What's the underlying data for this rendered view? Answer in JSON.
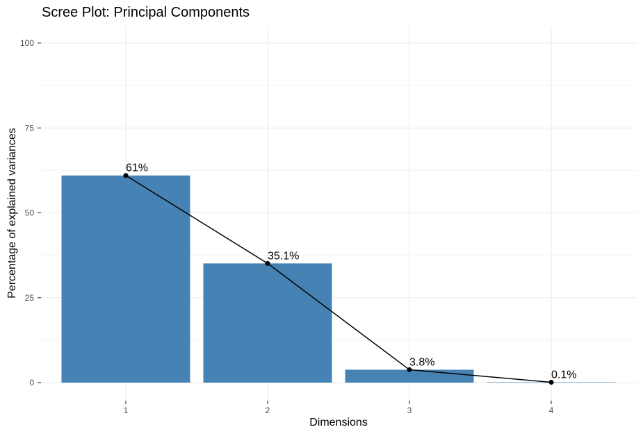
{
  "chart_data": {
    "type": "bar",
    "title": "Scree Plot: Principal Components",
    "xlabel": "Dimensions",
    "ylabel": "Percentage of explained variances",
    "categories": [
      "1",
      "2",
      "3",
      "4"
    ],
    "values": [
      61.0,
      35.1,
      3.8,
      0.1
    ],
    "data_labels": [
      "61%",
      "35.1%",
      "3.8%",
      "0.1%"
    ],
    "ylim": [
      0,
      102
    ],
    "yticks": [
      0,
      25,
      50,
      75,
      100
    ],
    "ytick_labels": [
      "0",
      "25",
      "50",
      "75",
      "100"
    ],
    "grid": true,
    "overlay": "line-with-points",
    "colors": {
      "bar": "#4682b4",
      "line": "#000000",
      "grid": "#ebebeb",
      "tick": "#333333"
    }
  }
}
